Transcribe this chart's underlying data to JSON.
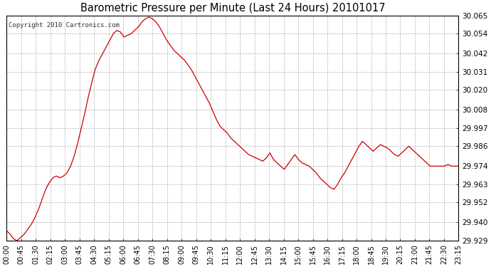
{
  "title": "Barometric Pressure per Minute (Last 24 Hours) 20101017",
  "copyright": "Copyright 2010 Cartronics.com",
  "line_color": "#cc0000",
  "background_color": "#ffffff",
  "grid_color": "#b0b0b0",
  "yticks": [
    29.929,
    29.94,
    29.952,
    29.963,
    29.974,
    29.986,
    29.997,
    30.008,
    30.02,
    30.031,
    30.042,
    30.054,
    30.065
  ],
  "ylim": [
    29.929,
    30.065
  ],
  "xtick_labels": [
    "00:00",
    "00:45",
    "01:30",
    "02:15",
    "03:00",
    "03:45",
    "04:30",
    "05:15",
    "06:00",
    "06:45",
    "07:30",
    "08:15",
    "09:00",
    "09:45",
    "10:30",
    "11:15",
    "12:00",
    "12:45",
    "13:30",
    "14:15",
    "15:00",
    "15:45",
    "16:30",
    "17:15",
    "18:00",
    "18:45",
    "19:30",
    "20:15",
    "21:00",
    "21:45",
    "22:30",
    "23:15"
  ],
  "data_points": [
    [
      0,
      29.935
    ],
    [
      1,
      29.933
    ],
    [
      2,
      29.93
    ],
    [
      3,
      29.929
    ],
    [
      4,
      29.931
    ],
    [
      5,
      29.933
    ],
    [
      6,
      29.936
    ],
    [
      7,
      29.939
    ],
    [
      8,
      29.943
    ],
    [
      9,
      29.948
    ],
    [
      10,
      29.954
    ],
    [
      11,
      29.96
    ],
    [
      12,
      29.964
    ],
    [
      13,
      29.967
    ],
    [
      14,
      29.968
    ],
    [
      15,
      29.967
    ],
    [
      16,
      29.968
    ],
    [
      17,
      29.97
    ],
    [
      18,
      29.974
    ],
    [
      19,
      29.98
    ],
    [
      20,
      29.988
    ],
    [
      21,
      29.997
    ],
    [
      22,
      30.006
    ],
    [
      23,
      30.016
    ],
    [
      24,
      30.025
    ],
    [
      25,
      30.033
    ],
    [
      26,
      30.038
    ],
    [
      27,
      30.042
    ],
    [
      28,
      30.046
    ],
    [
      29,
      30.05
    ],
    [
      30,
      30.054
    ],
    [
      31,
      30.056
    ],
    [
      32,
      30.055
    ],
    [
      33,
      30.052
    ],
    [
      34,
      30.053
    ],
    [
      35,
      30.054
    ],
    [
      36,
      30.056
    ],
    [
      37,
      30.058
    ],
    [
      38,
      30.061
    ],
    [
      39,
      30.063
    ],
    [
      40,
      30.064
    ],
    [
      41,
      30.063
    ],
    [
      42,
      30.061
    ],
    [
      43,
      30.058
    ],
    [
      44,
      30.054
    ],
    [
      45,
      30.05
    ],
    [
      46,
      30.047
    ],
    [
      47,
      30.044
    ],
    [
      48,
      30.042
    ],
    [
      49,
      30.04
    ],
    [
      50,
      30.038
    ],
    [
      51,
      30.035
    ],
    [
      52,
      30.032
    ],
    [
      53,
      30.028
    ],
    [
      54,
      30.024
    ],
    [
      55,
      30.02
    ],
    [
      56,
      30.016
    ],
    [
      57,
      30.012
    ],
    [
      58,
      30.007
    ],
    [
      59,
      30.002
    ],
    [
      60,
      29.998
    ],
    [
      61,
      29.996
    ],
    [
      62,
      29.994
    ],
    [
      63,
      29.991
    ],
    [
      64,
      29.989
    ],
    [
      65,
      29.987
    ],
    [
      66,
      29.985
    ],
    [
      67,
      29.983
    ],
    [
      68,
      29.981
    ],
    [
      69,
      29.98
    ],
    [
      70,
      29.979
    ],
    [
      71,
      29.978
    ],
    [
      72,
      29.977
    ],
    [
      73,
      29.979
    ],
    [
      74,
      29.982
    ],
    [
      75,
      29.978
    ],
    [
      76,
      29.976
    ],
    [
      77,
      29.974
    ],
    [
      78,
      29.972
    ],
    [
      79,
      29.975
    ],
    [
      80,
      29.978
    ],
    [
      81,
      29.981
    ],
    [
      82,
      29.978
    ],
    [
      83,
      29.976
    ],
    [
      84,
      29.975
    ],
    [
      85,
      29.974
    ],
    [
      86,
      29.972
    ],
    [
      87,
      29.97
    ],
    [
      88,
      29.967
    ],
    [
      89,
      29.965
    ],
    [
      90,
      29.963
    ],
    [
      91,
      29.961
    ],
    [
      92,
      29.96
    ],
    [
      93,
      29.963
    ],
    [
      94,
      29.967
    ],
    [
      95,
      29.97
    ],
    [
      96,
      29.974
    ],
    [
      97,
      29.978
    ],
    [
      98,
      29.982
    ],
    [
      99,
      29.986
    ],
    [
      100,
      29.989
    ],
    [
      101,
      29.987
    ],
    [
      102,
      29.985
    ],
    [
      103,
      29.983
    ],
    [
      104,
      29.985
    ],
    [
      105,
      29.987
    ],
    [
      106,
      29.986
    ],
    [
      107,
      29.985
    ],
    [
      108,
      29.983
    ],
    [
      109,
      29.981
    ],
    [
      110,
      29.98
    ],
    [
      111,
      29.982
    ],
    [
      112,
      29.984
    ],
    [
      113,
      29.986
    ],
    [
      114,
      29.984
    ],
    [
      115,
      29.982
    ],
    [
      116,
      29.98
    ],
    [
      117,
      29.978
    ],
    [
      118,
      29.976
    ],
    [
      119,
      29.974
    ],
    [
      120,
      29.974
    ],
    [
      121,
      29.974
    ],
    [
      122,
      29.974
    ],
    [
      123,
      29.974
    ],
    [
      124,
      29.975
    ],
    [
      125,
      29.974
    ],
    [
      126,
      29.974
    ],
    [
      127,
      29.974
    ]
  ]
}
